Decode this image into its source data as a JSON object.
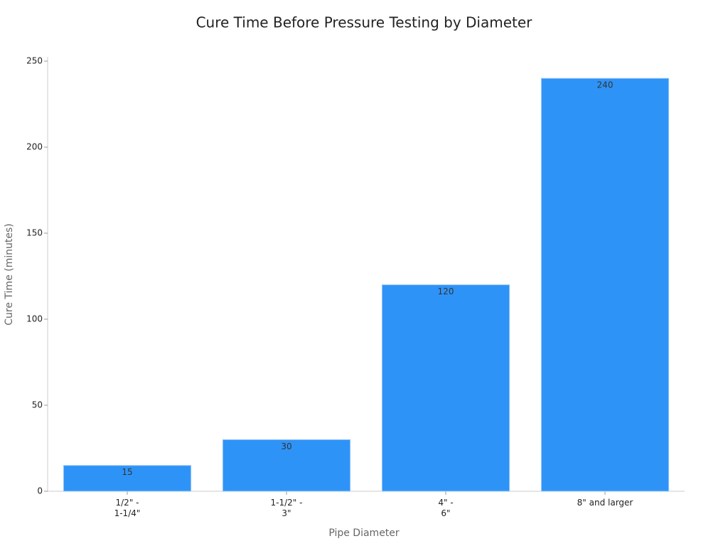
{
  "chart_data": {
    "type": "bar",
    "title": "Cure Time Before Pressure Testing by Diameter",
    "x_label": "Pipe Diameter",
    "y_label": "Cure Time (minutes)",
    "categories": [
      "1/2\" -\n1-1/4\"",
      "1-1/2\" -\n3\"",
      "4\" -\n6\"",
      "8\" and larger"
    ],
    "values": [
      15,
      30,
      120,
      240
    ],
    "color": "#2e93f7",
    "ylim": [
      0,
      250
    ],
    "yticks": [
      0,
      50,
      100,
      150,
      200,
      250
    ]
  }
}
